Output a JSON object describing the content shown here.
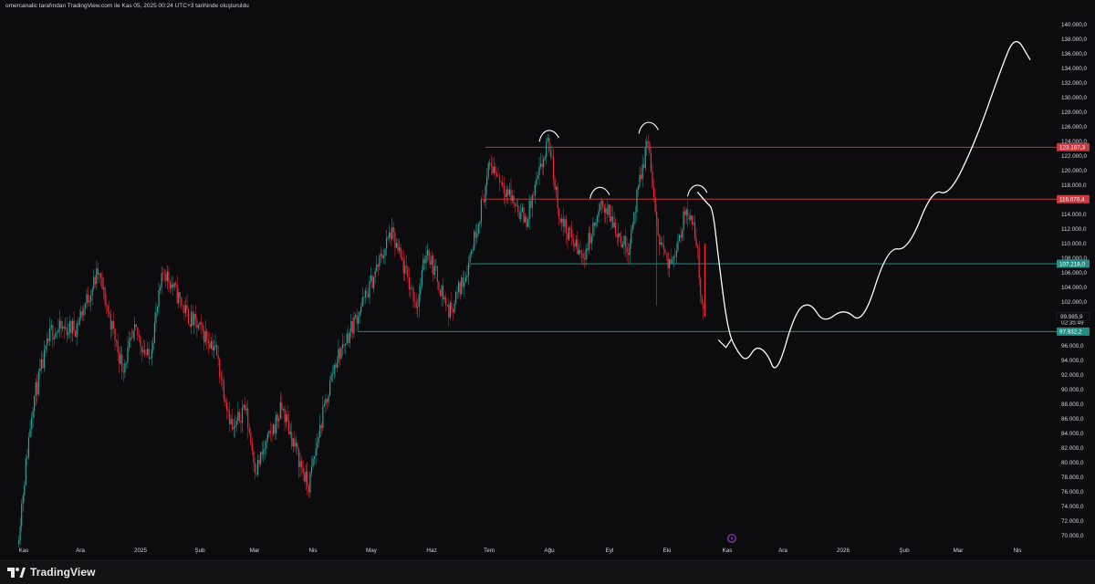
{
  "header": {
    "attribution": "omercanalic tarafından TradingView.com ile Kas 05, 2025 00:24 UTC+3 tarihinde oluşturuldu"
  },
  "footer": {
    "brand": "TradingView"
  },
  "colors": {
    "background": "#0c0c0e",
    "up_candle": "#26a69a",
    "down_candle": "#ef2a36",
    "resistance_line": "#d23b3f",
    "support_line": "#2a9d8f",
    "drawing": "#ffffff",
    "axis_text": "#d1d4dc"
  },
  "chart_data": {
    "type": "candlestick",
    "title": "",
    "xlabel": "",
    "ylabel": "",
    "ylim": [
      69600,
      140600
    ],
    "y_ticks": [
      "140.000,0",
      "138.000,0",
      "136.000,0",
      "134.000,0",
      "132.000,0",
      "130.000,0",
      "128.000,0",
      "126.000,0",
      "124.000,0",
      "122.000,0",
      "120.000,0",
      "118.000,0",
      "116.000,0",
      "114.000,0",
      "112.000,0",
      "110.000,0",
      "108.000,0",
      "106.000,0",
      "104.000,0",
      "102.000,0",
      "99.985,9",
      "96.000,0",
      "94.000,0",
      "92.000,0",
      "90.000,0",
      "88.000,0",
      "86.000,0",
      "84.000,0",
      "82.000,0",
      "80.000,0",
      "78.000,0",
      "76.000,0",
      "74.000,0",
      "72.000,0",
      "70.000,0"
    ],
    "x_ticks": [
      "Kas",
      "Ara",
      "2025",
      "Şub",
      "Mar",
      "Nis",
      "May",
      "Haz",
      "Tem",
      "Ağu",
      "Eyl",
      "Eki",
      "Kas",
      "Ara",
      "2026",
      "Şub",
      "Mar",
      "Nis"
    ],
    "price_tags": [
      {
        "label": "123.187,3",
        "value": 123187.3,
        "kind": "resistance"
      },
      {
        "label": "116.070,4",
        "value": 116070.4,
        "kind": "resistance"
      },
      {
        "label": "107.218,0",
        "value": 107218.0,
        "kind": "support"
      },
      {
        "label": "97.932,2",
        "value": 97932.2,
        "kind": "support"
      }
    ],
    "last_price": {
      "label": "99.985,9",
      "countdown": "02:35:49",
      "value": 99985.9
    },
    "price_path": [
      {
        "date": "2024-11-04",
        "price": 68800
      },
      {
        "date": "2024-11-12",
        "price": 88000
      },
      {
        "date": "2024-11-22",
        "price": 98000
      },
      {
        "date": "2024-12-05",
        "price": 98500
      },
      {
        "date": "2024-12-17",
        "price": 106000
      },
      {
        "date": "2024-12-30",
        "price": 93000
      },
      {
        "date": "2025-01-06",
        "price": 98000
      },
      {
        "date": "2025-01-13",
        "price": 94000
      },
      {
        "date": "2025-01-21",
        "price": 106500
      },
      {
        "date": "2025-02-03",
        "price": 100000
      },
      {
        "date": "2025-02-17",
        "price": 96000
      },
      {
        "date": "2025-02-27",
        "price": 84000
      },
      {
        "date": "2025-03-05",
        "price": 88000
      },
      {
        "date": "2025-03-11",
        "price": 79000
      },
      {
        "date": "2025-03-25",
        "price": 87500
      },
      {
        "date": "2025-04-08",
        "price": 76500
      },
      {
        "date": "2025-04-14",
        "price": 84500
      },
      {
        "date": "2025-04-22",
        "price": 93500
      },
      {
        "date": "2025-05-09",
        "price": 103000
      },
      {
        "date": "2025-05-22",
        "price": 111500
      },
      {
        "date": "2025-06-05",
        "price": 101500
      },
      {
        "date": "2025-06-10",
        "price": 109500
      },
      {
        "date": "2025-06-22",
        "price": 100500
      },
      {
        "date": "2025-07-01",
        "price": 106000
      },
      {
        "date": "2025-07-10",
        "price": 116000
      },
      {
        "date": "2025-07-14",
        "price": 121000
      },
      {
        "date": "2025-08-02",
        "price": 113000
      },
      {
        "date": "2025-08-14",
        "price": 124000
      },
      {
        "date": "2025-08-20",
        "price": 113500
      },
      {
        "date": "2025-09-01",
        "price": 108000
      },
      {
        "date": "2025-09-12",
        "price": 115500
      },
      {
        "date": "2025-09-25",
        "price": 109000
      },
      {
        "date": "2025-10-06",
        "price": 124500
      },
      {
        "date": "2025-10-10",
        "price": 113000
      },
      {
        "date": "2025-10-17",
        "price": 106500
      },
      {
        "date": "2025-10-27",
        "price": 115000
      },
      {
        "date": "2025-11-01",
        "price": 110000
      },
      {
        "date": "2025-11-04",
        "price": 99985.9
      }
    ],
    "horizontal_levels": [
      {
        "value": 123187.3,
        "start": "2025-07-11",
        "kind": "resistance"
      },
      {
        "value": 116070.4,
        "start": "2025-07-11",
        "kind": "resistance"
      },
      {
        "value": 107218.0,
        "start": "2025-07-03",
        "kind": "support"
      },
      {
        "value": 97932.2,
        "start": "2025-05-04",
        "kind": "support"
      }
    ],
    "drawn_projection": [
      {
        "date": "2025-11-06",
        "price": 115500
      },
      {
        "date": "2025-11-09",
        "price": 114800
      },
      {
        "date": "2025-11-12",
        "price": 108000
      },
      {
        "date": "2025-11-17",
        "price": 98000
      },
      {
        "date": "2025-11-22",
        "price": 95200
      },
      {
        "date": "2025-11-27",
        "price": 93800
      },
      {
        "date": "2025-12-02",
        "price": 96000
      },
      {
        "date": "2025-12-08",
        "price": 95000
      },
      {
        "date": "2025-12-13",
        "price": 91800
      },
      {
        "date": "2025-12-23",
        "price": 100800
      },
      {
        "date": "2025-12-31",
        "price": 102000
      },
      {
        "date": "2026-01-07",
        "price": 99000
      },
      {
        "date": "2026-01-18",
        "price": 101200
      },
      {
        "date": "2026-01-28",
        "price": 98800
      },
      {
        "date": "2026-02-10",
        "price": 109500
      },
      {
        "date": "2026-02-21",
        "price": 109000
      },
      {
        "date": "2026-03-06",
        "price": 117500
      },
      {
        "date": "2026-03-15",
        "price": 116500
      },
      {
        "date": "2026-03-29",
        "price": 124000
      },
      {
        "date": "2026-04-11",
        "price": 133500
      },
      {
        "date": "2026-04-19",
        "price": 138700
      },
      {
        "date": "2026-04-27",
        "price": 135200
      }
    ],
    "top_markers": [
      {
        "date": "2025-08-14",
        "price": 125000
      },
      {
        "date": "2025-09-10",
        "price": 117200
      },
      {
        "date": "2025-10-06",
        "price": 126100
      },
      {
        "date": "2025-11-01",
        "price": 117500
      }
    ]
  }
}
